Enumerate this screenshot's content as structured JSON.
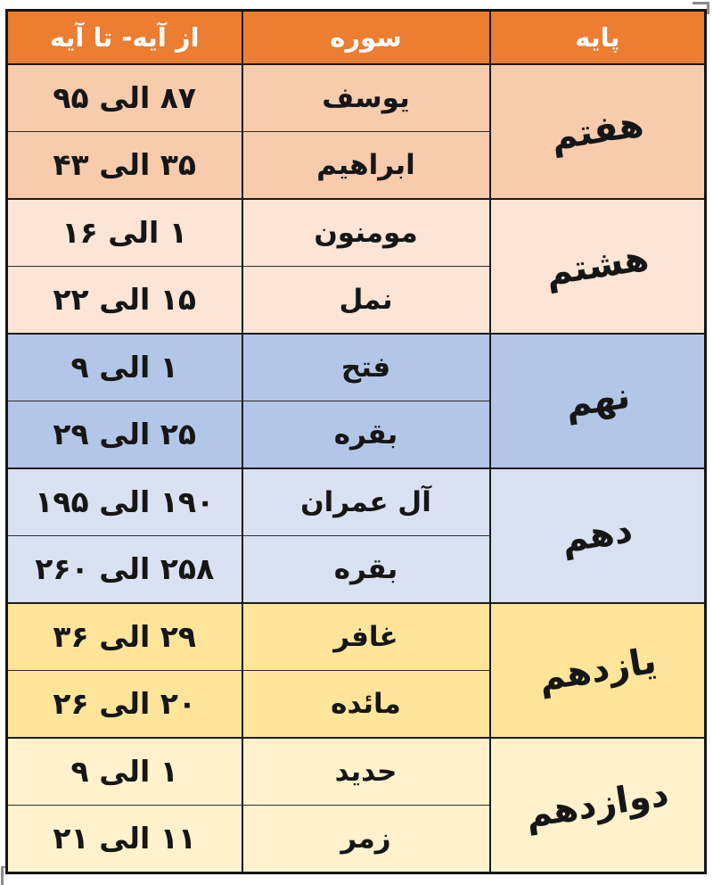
{
  "page": {
    "background": "#ffffff",
    "border_color": "#1c1c1c",
    "text_color": "#161616"
  },
  "table": {
    "direction": "rtl",
    "header": {
      "bg": "#ED7D31",
      "text_color": "#FFFFFF",
      "grade_label": "پایه",
      "surah_label": "سوره",
      "range_label": "از آیه- تا آیه"
    },
    "groups": [
      {
        "grade": "هفتم",
        "bg": "#F8CBAD",
        "entries": [
          {
            "surah": "یوسف",
            "range": "۸۷ الی ۹۵"
          },
          {
            "surah": "ابراهیم",
            "range": "۳۵ الی ۴۳"
          }
        ]
      },
      {
        "grade": "هشتم",
        "bg": "#FCE4D6",
        "entries": [
          {
            "surah": "مومنون",
            "range": "۱ الی ۱۶"
          },
          {
            "surah": "نمل",
            "range": "۱۵ الی ۲۲"
          }
        ]
      },
      {
        "grade": "نهم",
        "bg": "#B4C6E7",
        "entries": [
          {
            "surah": "فتح",
            "range": "۱ الی ۹"
          },
          {
            "surah": "بقره",
            "range": "۲۵ الی ۲۹"
          }
        ]
      },
      {
        "grade": "دهم",
        "bg": "#D9E1F2",
        "entries": [
          {
            "surah": "آل عمران",
            "range": "۱۹۰ الی ۱۹۵"
          },
          {
            "surah": "بقره",
            "range": "۲۵۸ الی ۲۶۰"
          }
        ]
      },
      {
        "grade": "یازدهم",
        "bg": "#FFE599",
        "entries": [
          {
            "surah": "غافر",
            "range": "۲۹ الی ۳۶"
          },
          {
            "surah": "مائده",
            "range": "۲۰ الی ۲۶"
          }
        ]
      },
      {
        "grade": "دوازدهم",
        "bg": "#FFF2CC",
        "entries": [
          {
            "surah": "حدید",
            "range": "۱ الی ۹"
          },
          {
            "surah": "زمر",
            "range": "۱۱ الی ۲۱"
          }
        ]
      }
    ]
  }
}
